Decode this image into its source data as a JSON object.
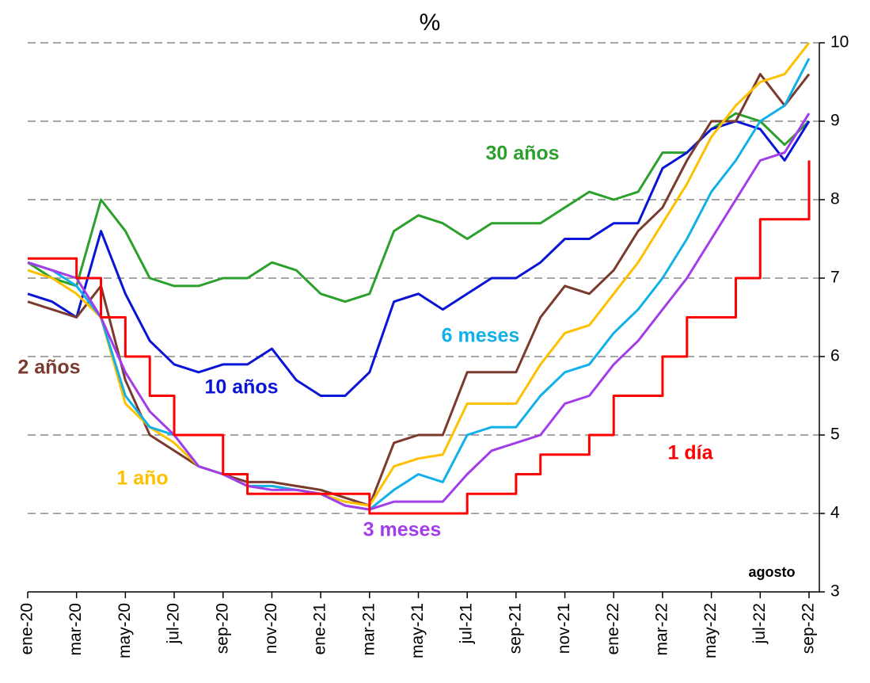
{
  "chart_data": {
    "type": "line",
    "title": "%",
    "x": [
      "2020-01",
      "2020-02",
      "2020-03",
      "2020-04",
      "2020-05",
      "2020-06",
      "2020-07",
      "2020-08",
      "2020-09",
      "2020-10",
      "2020-11",
      "2020-12",
      "2021-01",
      "2021-02",
      "2021-03",
      "2021-04",
      "2021-05",
      "2021-06",
      "2021-07",
      "2021-08",
      "2021-09",
      "2021-10",
      "2021-11",
      "2021-12",
      "2022-01",
      "2022-02",
      "2022-03",
      "2022-04",
      "2022-05",
      "2022-06",
      "2022-07",
      "2022-08",
      "2022-09"
    ],
    "xlim": [
      "2020-01",
      "2022-09"
    ],
    "xticks": [
      {
        "value": "2020-01",
        "label": "ene-20"
      },
      {
        "value": "2020-03",
        "label": "mar-20"
      },
      {
        "value": "2020-05",
        "label": "may-20"
      },
      {
        "value": "2020-07",
        "label": "jul-20"
      },
      {
        "value": "2020-09",
        "label": "sep-20"
      },
      {
        "value": "2020-11",
        "label": "nov-20"
      },
      {
        "value": "2021-01",
        "label": "ene-21"
      },
      {
        "value": "2021-03",
        "label": "mar-21"
      },
      {
        "value": "2021-05",
        "label": "may-21"
      },
      {
        "value": "2021-07",
        "label": "jul-21"
      },
      {
        "value": "2021-09",
        "label": "sep-21"
      },
      {
        "value": "2021-11",
        "label": "nov-21"
      },
      {
        "value": "2022-01",
        "label": "ene-22"
      },
      {
        "value": "2022-03",
        "label": "mar-22"
      },
      {
        "value": "2022-05",
        "label": "may-22"
      },
      {
        "value": "2022-07",
        "label": "jul-22"
      },
      {
        "value": "2022-09",
        "label": "sep-22"
      }
    ],
    "ylim": [
      3,
      10
    ],
    "yticks": [
      3,
      4,
      5,
      6,
      7,
      8,
      9,
      10
    ],
    "grid": true,
    "series": [
      {
        "name": "30 años",
        "color": "#2ca02c",
        "values": [
          7.2,
          7.0,
          6.9,
          8.0,
          7.6,
          7.0,
          6.9,
          6.9,
          7.0,
          7.0,
          7.2,
          7.1,
          6.8,
          6.7,
          6.8,
          7.6,
          7.8,
          7.7,
          7.5,
          7.7,
          7.7,
          7.7,
          7.9,
          8.1,
          8.0,
          8.1,
          8.6,
          8.6,
          8.9,
          9.1,
          9.0,
          8.7,
          9.0
        ]
      },
      {
        "name": "10 años",
        "color": "#0a14d6",
        "values": [
          6.8,
          6.7,
          6.5,
          7.6,
          6.8,
          6.2,
          5.9,
          5.8,
          5.9,
          5.9,
          6.1,
          5.7,
          5.5,
          5.5,
          5.8,
          6.7,
          6.8,
          6.6,
          6.8,
          7.0,
          7.0,
          7.2,
          7.5,
          7.5,
          7.7,
          7.7,
          8.4,
          8.6,
          8.9,
          9.0,
          8.9,
          8.5,
          9.0
        ]
      },
      {
        "name": "2 años",
        "color": "#7b3a2e",
        "values": [
          6.7,
          6.6,
          6.5,
          6.9,
          5.7,
          5.0,
          4.8,
          4.6,
          4.5,
          4.4,
          4.4,
          4.35,
          4.3,
          4.2,
          4.1,
          4.9,
          5.0,
          5.0,
          5.8,
          5.8,
          5.8,
          6.5,
          6.9,
          6.8,
          7.1,
          7.6,
          7.9,
          8.5,
          9.0,
          9.0,
          9.6,
          9.2,
          9.6
        ]
      },
      {
        "name": "1 año",
        "color": "#ffc000",
        "values": [
          7.1,
          7.0,
          6.8,
          6.5,
          5.4,
          5.1,
          4.9,
          4.6,
          4.5,
          4.35,
          4.35,
          4.3,
          4.25,
          4.15,
          4.1,
          4.6,
          4.7,
          4.75,
          5.4,
          5.4,
          5.4,
          5.9,
          6.3,
          6.4,
          6.8,
          7.2,
          7.7,
          8.2,
          8.8,
          9.2,
          9.5,
          9.6,
          10.0
        ]
      },
      {
        "name": "6 meses",
        "color": "#12b0e8",
        "values": [
          7.2,
          7.1,
          6.9,
          6.5,
          5.5,
          5.1,
          5.0,
          4.6,
          4.5,
          4.35,
          4.35,
          4.3,
          4.25,
          4.1,
          4.05,
          4.3,
          4.5,
          4.4,
          5.0,
          5.1,
          5.1,
          5.5,
          5.8,
          5.9,
          6.3,
          6.6,
          7.0,
          7.5,
          8.1,
          8.5,
          9.0,
          9.2,
          9.8
        ]
      },
      {
        "name": "3 meses",
        "color": "#a23de8",
        "values": [
          7.2,
          7.1,
          7.0,
          6.5,
          5.8,
          5.3,
          5.0,
          4.6,
          4.5,
          4.35,
          4.3,
          4.3,
          4.25,
          4.1,
          4.05,
          4.15,
          4.15,
          4.15,
          4.5,
          4.8,
          4.9,
          5.0,
          5.4,
          5.5,
          5.9,
          6.2,
          6.6,
          7.0,
          7.5,
          8.0,
          8.5,
          8.6,
          9.1
        ]
      },
      {
        "name": "1 día",
        "color": "#ff0000",
        "step": true,
        "values": [
          7.25,
          7.25,
          7.0,
          6.5,
          6.0,
          5.5,
          5.0,
          5.0,
          4.5,
          4.25,
          4.25,
          4.25,
          4.25,
          4.25,
          4.0,
          4.0,
          4.0,
          4.0,
          4.25,
          4.25,
          4.5,
          4.75,
          4.75,
          5.0,
          5.5,
          5.5,
          6.0,
          6.5,
          6.5,
          7.0,
          7.75,
          7.75,
          8.5
        ]
      }
    ],
    "annotations": [
      "agosto"
    ]
  }
}
